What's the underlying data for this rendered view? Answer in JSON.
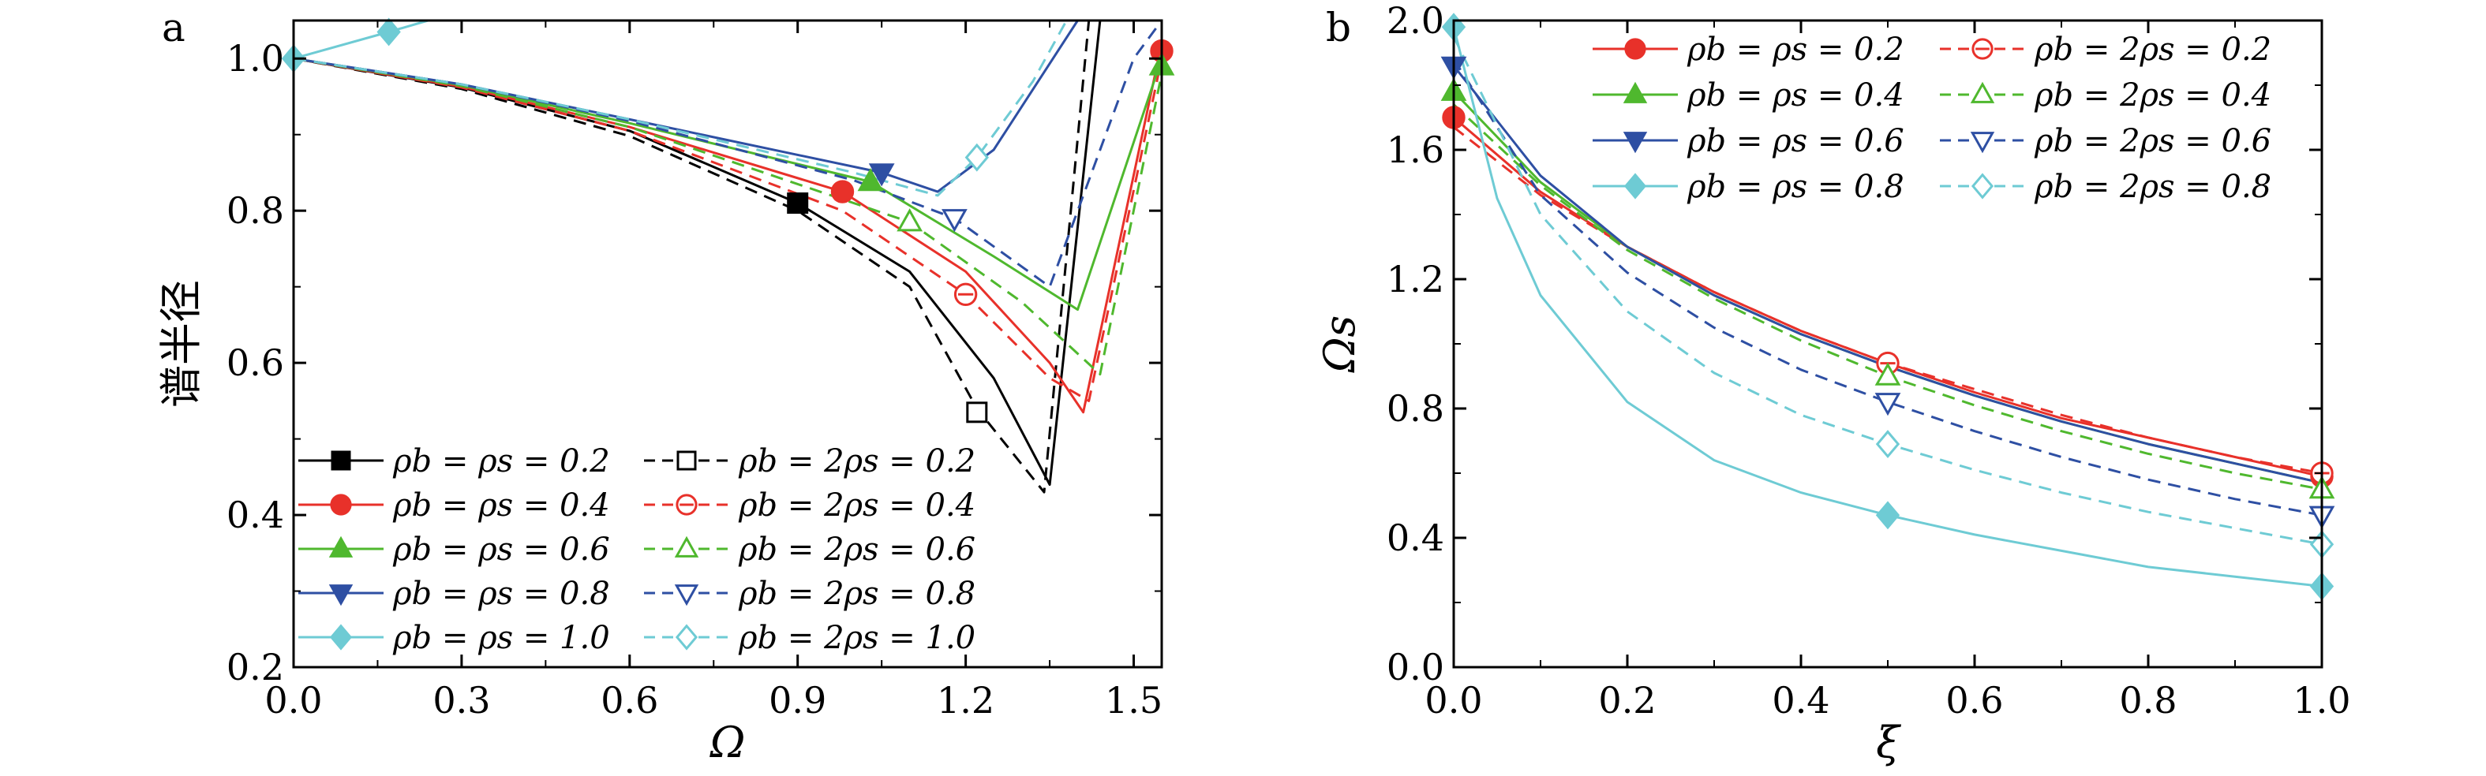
{
  "chart_data": [
    {
      "panel_label": "a",
      "type": "line",
      "xlabel": "Ω",
      "ylabel": "谱半径",
      "xlim": [
        0.0,
        1.55
      ],
      "ylim": [
        0.2,
        1.05
      ],
      "xticks": [
        "0.0",
        "0.3",
        "0.6",
        "0.9",
        "1.2",
        "1.5"
      ],
      "yticks": [
        "0.2",
        "0.4",
        "0.6",
        "0.8",
        "1.0"
      ],
      "legend_position": "bottom-left",
      "series": [
        {
          "name": "ρb = ρs = 0.2",
          "color": "#000000",
          "dashed": false,
          "marker": "square",
          "filled": true,
          "x": [
            0,
            0.3,
            0.6,
            0.9,
            1.1,
            1.25,
            1.35,
            1.44,
            1.55
          ],
          "y": [
            1.0,
            0.962,
            0.905,
            0.81,
            0.72,
            0.58,
            0.44,
            1.05,
            1.05
          ],
          "marker_x": [
            0.9
          ],
          "marker_y": [
            0.81
          ]
        },
        {
          "name": "ρb = 2ρs = 0.2",
          "color": "#000000",
          "dashed": true,
          "marker": "square",
          "filled": false,
          "x": [
            0,
            0.3,
            0.6,
            0.9,
            1.1,
            1.22,
            1.34,
            1.42,
            1.55
          ],
          "y": [
            1.0,
            0.96,
            0.898,
            0.8,
            0.7,
            0.54,
            0.43,
            1.05,
            1.05
          ],
          "marker_x": [
            1.22
          ],
          "marker_y": [
            0.535
          ]
        },
        {
          "name": "ρb = ρs = 0.4",
          "color": "#e8312a",
          "dashed": false,
          "marker": "circle",
          "filled": true,
          "x": [
            0,
            0.3,
            0.6,
            0.98,
            1.2,
            1.35,
            1.41,
            1.55
          ],
          "y": [
            1.0,
            0.963,
            0.91,
            0.825,
            0.72,
            0.6,
            0.535,
            1.02
          ],
          "marker_x": [
            0.98,
            1.55
          ],
          "marker_y": [
            0.825,
            1.01
          ]
        },
        {
          "name": "ρb = 2ρs = 0.4",
          "color": "#e8312a",
          "dashed": true,
          "marker": "circle",
          "filled": false,
          "x": [
            0,
            0.3,
            0.6,
            0.98,
            1.2,
            1.35,
            1.42,
            1.55
          ],
          "y": [
            1.0,
            0.962,
            0.905,
            0.8,
            0.69,
            0.58,
            0.55,
            1.0
          ],
          "marker_x": [
            1.2
          ],
          "marker_y": [
            0.69
          ]
        },
        {
          "name": "ρb = ρs = 0.6",
          "color": "#4fb82e",
          "dashed": false,
          "marker": "triangle-up",
          "filled": true,
          "x": [
            0,
            0.3,
            0.6,
            1.03,
            1.25,
            1.4,
            1.55
          ],
          "y": [
            1.0,
            0.965,
            0.915,
            0.838,
            0.74,
            0.67,
            1.0
          ],
          "marker_x": [
            1.03,
            1.55
          ],
          "marker_y": [
            0.838,
            0.99
          ]
        },
        {
          "name": "ρb = 2ρs = 0.6",
          "color": "#4fb82e",
          "dashed": true,
          "marker": "triangle-up",
          "filled": false,
          "x": [
            0,
            0.3,
            0.6,
            1.1,
            1.3,
            1.44,
            1.55
          ],
          "y": [
            1.0,
            0.964,
            0.91,
            0.785,
            0.68,
            0.585,
            0.98
          ],
          "marker_x": [
            1.1
          ],
          "marker_y": [
            0.785
          ]
        },
        {
          "name": "ρb = ρs = 0.8",
          "color": "#2e4fa3",
          "dashed": false,
          "marker": "triangle-down",
          "filled": true,
          "x": [
            0,
            0.3,
            0.6,
            1.05,
            1.15,
            1.25,
            1.4
          ],
          "y": [
            1.0,
            0.966,
            0.92,
            0.85,
            0.825,
            0.88,
            1.05
          ],
          "marker_x": [
            1.05
          ],
          "marker_y": [
            0.85
          ]
        },
        {
          "name": "ρb = 2ρs = 0.8",
          "color": "#2e4fa3",
          "dashed": true,
          "marker": "triangle-down",
          "filled": false,
          "x": [
            0,
            0.3,
            0.6,
            1.0,
            1.18,
            1.35,
            1.5,
            1.55
          ],
          "y": [
            1.0,
            0.966,
            0.918,
            0.84,
            0.79,
            0.7,
            1.0,
            1.05
          ],
          "marker_x": [
            1.18
          ],
          "marker_y": [
            0.79
          ]
        },
        {
          "name": "ρb = ρs = 1.0",
          "color": "#6ecbd4",
          "dashed": false,
          "marker": "diamond",
          "filled": true,
          "x": [
            0,
            0.17,
            0.24
          ],
          "y": [
            1.0,
            1.035,
            1.05
          ],
          "marker_x": [
            0,
            0.17
          ],
          "marker_y": [
            1.0,
            1.035
          ]
        },
        {
          "name": "ρb = 2ρs = 1.0",
          "color": "#6ecbd4",
          "dashed": true,
          "marker": "diamond",
          "filled": false,
          "x": [
            0,
            0.3,
            0.6,
            1.0,
            1.15,
            1.22,
            1.32,
            1.38
          ],
          "y": [
            1.0,
            0.966,
            0.92,
            0.85,
            0.82,
            0.87,
            0.97,
            1.05
          ],
          "marker_x": [
            1.22
          ],
          "marker_y": [
            0.87
          ]
        }
      ]
    },
    {
      "panel_label": "b",
      "type": "line",
      "xlabel": "ξ",
      "ylabel": "Ωs",
      "xlim": [
        0.0,
        1.0
      ],
      "ylim": [
        0.0,
        2.0
      ],
      "xticks": [
        "0.0",
        "0.2",
        "0.4",
        "0.6",
        "0.8",
        "1.0"
      ],
      "yticks": [
        "0.0",
        "0.4",
        "0.8",
        "1.2",
        "1.6",
        "2.0"
      ],
      "legend_position": "top-right",
      "series": [
        {
          "name": "ρb = ρs = 0.2",
          "color": "#e8312a",
          "dashed": false,
          "marker": "circle",
          "filled": true,
          "x": [
            0,
            0.1,
            0.2,
            0.3,
            0.4,
            0.5,
            0.6,
            0.7,
            0.8,
            0.9,
            1.0
          ],
          "y": [
            1.7,
            1.47,
            1.3,
            1.16,
            1.04,
            0.94,
            0.85,
            0.77,
            0.71,
            0.65,
            0.59
          ],
          "marker_x": [
            0,
            1.0
          ],
          "marker_y": [
            1.7,
            0.59
          ]
        },
        {
          "name": "ρb = 2ρs = 0.2",
          "color": "#e8312a",
          "dashed": true,
          "marker": "circle",
          "filled": false,
          "x": [
            0,
            0.1,
            0.2,
            0.3,
            0.4,
            0.5,
            0.6,
            0.7,
            0.8,
            0.9,
            1.0
          ],
          "y": [
            1.67,
            1.46,
            1.3,
            1.16,
            1.04,
            0.94,
            0.86,
            0.78,
            0.71,
            0.65,
            0.6
          ],
          "marker_x": [
            0.5,
            1.0
          ],
          "marker_y": [
            0.94,
            0.6
          ]
        },
        {
          "name": "ρb = ρs = 0.4",
          "color": "#4fb82e",
          "dashed": false,
          "marker": "triangle-up",
          "filled": true,
          "x": [
            0,
            0.1,
            0.2,
            0.3,
            0.4,
            0.5,
            0.6,
            0.7,
            0.8,
            0.9,
            1.0
          ],
          "y": [
            1.78,
            1.5,
            1.3,
            1.15,
            1.03,
            0.93,
            0.84,
            0.76,
            0.69,
            0.63,
            0.57
          ],
          "marker_x": [
            0
          ],
          "marker_y": [
            1.78
          ]
        },
        {
          "name": "ρb = 2ρs = 0.4",
          "color": "#4fb82e",
          "dashed": true,
          "marker": "triangle-up",
          "filled": false,
          "x": [
            0,
            0.1,
            0.2,
            0.3,
            0.4,
            0.5,
            0.6,
            0.7,
            0.8,
            0.9,
            1.0
          ],
          "y": [
            1.74,
            1.49,
            1.29,
            1.14,
            1.01,
            0.9,
            0.81,
            0.73,
            0.66,
            0.6,
            0.55
          ],
          "marker_x": [
            0.5,
            1.0
          ],
          "marker_y": [
            0.9,
            0.55
          ]
        },
        {
          "name": "ρb = ρs = 0.6",
          "color": "#2e4fa3",
          "dashed": false,
          "marker": "triangle-down",
          "filled": true,
          "x": [
            0,
            0.1,
            0.2,
            0.3,
            0.4,
            0.5,
            0.6,
            0.7,
            0.8,
            0.9,
            1.0
          ],
          "y": [
            1.86,
            1.52,
            1.3,
            1.15,
            1.03,
            0.93,
            0.84,
            0.76,
            0.69,
            0.63,
            0.57
          ],
          "marker_x": [
            0
          ],
          "marker_y": [
            1.86
          ]
        },
        {
          "name": "ρb = 2ρs = 0.6",
          "color": "#2e4fa3",
          "dashed": true,
          "marker": "triangle-down",
          "filled": false,
          "x": [
            0,
            0.1,
            0.2,
            0.3,
            0.4,
            0.5,
            0.6,
            0.7,
            0.8,
            0.9,
            1.0
          ],
          "y": [
            1.88,
            1.46,
            1.22,
            1.05,
            0.92,
            0.82,
            0.73,
            0.65,
            0.58,
            0.52,
            0.47
          ],
          "marker_x": [
            0.5,
            1.0
          ],
          "marker_y": [
            0.82,
            0.47
          ]
        },
        {
          "name": "ρb = ρs = 0.8",
          "color": "#6ecbd4",
          "dashed": false,
          "marker": "diamond",
          "filled": true,
          "x": [
            0,
            0.05,
            0.1,
            0.2,
            0.3,
            0.4,
            0.5,
            0.6,
            0.7,
            0.8,
            0.9,
            1.0
          ],
          "y": [
            1.98,
            1.45,
            1.15,
            0.82,
            0.64,
            0.54,
            0.47,
            0.41,
            0.36,
            0.31,
            0.28,
            0.25
          ],
          "marker_x": [
            0,
            0.5,
            1.0
          ],
          "marker_y": [
            1.98,
            0.47,
            0.25
          ]
        },
        {
          "name": "ρb = 2ρs = 0.8",
          "color": "#6ecbd4",
          "dashed": true,
          "marker": "diamond",
          "filled": false,
          "x": [
            0,
            0.1,
            0.2,
            0.3,
            0.4,
            0.5,
            0.6,
            0.7,
            0.8,
            0.9,
            1.0
          ],
          "y": [
            1.95,
            1.4,
            1.1,
            0.91,
            0.78,
            0.69,
            0.61,
            0.54,
            0.48,
            0.43,
            0.38
          ],
          "marker_x": [
            0.5,
            1.0
          ],
          "marker_y": [
            0.69,
            0.38
          ]
        }
      ]
    }
  ]
}
